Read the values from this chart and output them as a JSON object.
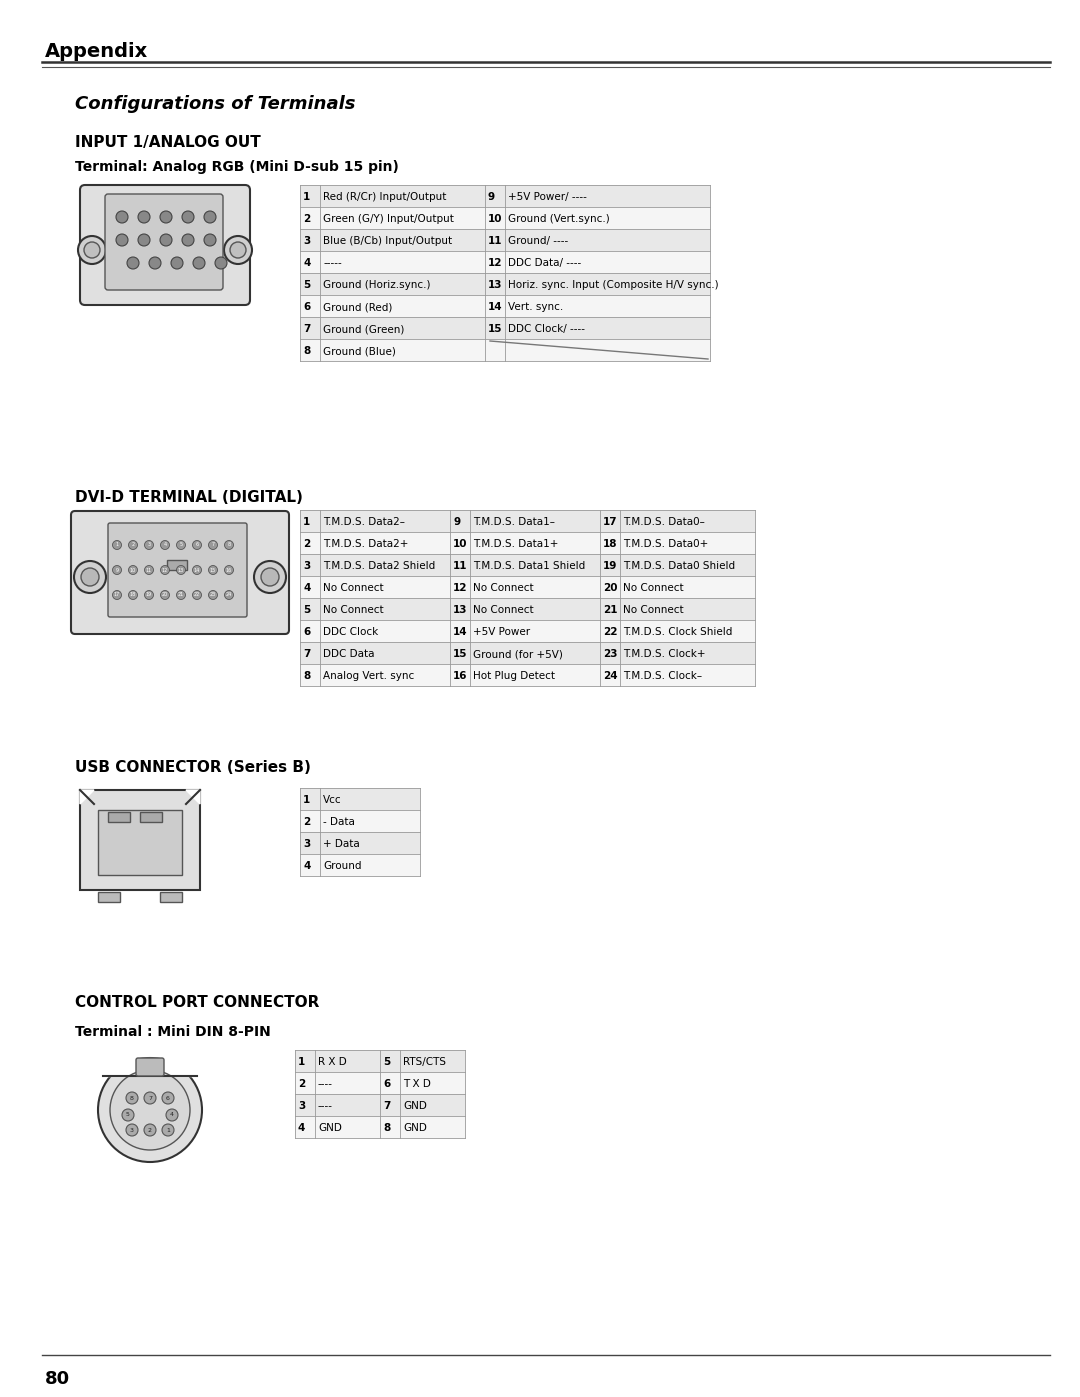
{
  "page_title": "Appendix",
  "section_title": "Configurations of Terminals",
  "bg_color": "#ffffff",
  "section1_title": "INPUT 1/ANALOG OUT",
  "section1_sub": "Terminal: Analog RGB (Mini D-sub 15 pin)",
  "analog_table_left": [
    [
      "1",
      "Red (R/Cr) Input/Output"
    ],
    [
      "2",
      "Green (G/Y) Input/Output"
    ],
    [
      "3",
      "Blue (B/Cb) Input/Output"
    ],
    [
      "4",
      "-----"
    ],
    [
      "5",
      "Ground (Horiz.sync.)"
    ],
    [
      "6",
      "Ground (Red)"
    ],
    [
      "7",
      "Ground (Green)"
    ],
    [
      "8",
      "Ground (Blue)"
    ]
  ],
  "analog_table_right": [
    [
      "9",
      "+5V Power/ ----"
    ],
    [
      "10",
      "Ground (Vert.sync.)"
    ],
    [
      "11",
      "Ground/ ----"
    ],
    [
      "12",
      "DDC Data/ ----"
    ],
    [
      "13",
      "Horiz. sync. Input (Composite H/V sync.)"
    ],
    [
      "14",
      "Vert. sync."
    ],
    [
      "15",
      "DDC Clock/ ----"
    ],
    [
      "",
      ""
    ]
  ],
  "section2_title": "DVI-D TERMINAL (DIGITAL)",
  "dvi_col1": [
    [
      "1",
      "T.M.D.S. Data2–"
    ],
    [
      "2",
      "T.M.D.S. Data2+"
    ],
    [
      "3",
      "T.M.D.S. Data2 Shield"
    ],
    [
      "4",
      "No Connect"
    ],
    [
      "5",
      "No Connect"
    ],
    [
      "6",
      "DDC Clock"
    ],
    [
      "7",
      "DDC Data"
    ],
    [
      "8",
      "Analog Vert. sync"
    ]
  ],
  "dvi_col2": [
    [
      "9",
      "T.M.D.S. Data1–"
    ],
    [
      "10",
      "T.M.D.S. Data1+"
    ],
    [
      "11",
      "T.M.D.S. Data1 Shield"
    ],
    [
      "12",
      "No Connect"
    ],
    [
      "13",
      "No Connect"
    ],
    [
      "14",
      "+5V Power"
    ],
    [
      "15",
      "Ground (for +5V)"
    ],
    [
      "16",
      "Hot Plug Detect"
    ]
  ],
  "dvi_col3": [
    [
      "17",
      "T.M.D.S. Data0–"
    ],
    [
      "18",
      "T.M.D.S. Data0+"
    ],
    [
      "19",
      "T.M.D.S. Data0 Shield"
    ],
    [
      "20",
      "No Connect"
    ],
    [
      "21",
      "No Connect"
    ],
    [
      "22",
      "T.M.D.S. Clock Shield"
    ],
    [
      "23",
      "T.M.D.S. Clock+"
    ],
    [
      "24",
      "T.M.D.S. Clock–"
    ]
  ],
  "section3_title": "USB CONNECTOR (Series B)",
  "usb_table": [
    [
      "1",
      "Vcc"
    ],
    [
      "2",
      "- Data"
    ],
    [
      "3",
      "+ Data"
    ],
    [
      "4",
      "Ground"
    ]
  ],
  "section4_title": "CONTROL PORT CONNECTOR",
  "section4_sub": "Terminal : Mini DIN 8-PIN",
  "ctrl_left": [
    [
      "1",
      "R X D"
    ],
    [
      "2",
      "----"
    ],
    [
      "3",
      "----"
    ],
    [
      "4",
      "GND"
    ]
  ],
  "ctrl_right": [
    [
      "5",
      "RTS/CTS"
    ],
    [
      "6",
      "T X D"
    ],
    [
      "7",
      "GND"
    ],
    [
      "8",
      "GND"
    ]
  ],
  "page_number": "80"
}
